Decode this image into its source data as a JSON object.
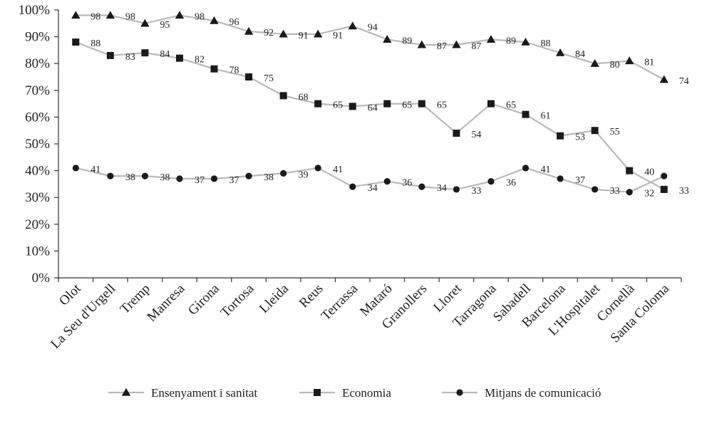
{
  "chart_data": {
    "type": "line",
    "title": "",
    "xlabel": "",
    "ylabel": "",
    "ylim": [
      0,
      100
    ],
    "y_ticks": [
      "0%",
      "10%",
      "20%",
      "30%",
      "40%",
      "50%",
      "60%",
      "70%",
      "80%",
      "90%",
      "100%"
    ],
    "categories": [
      "Olot",
      "La Seu d'Urgell",
      "Tremp",
      "Manresa",
      "Girona",
      "Tortosa",
      "Lleida",
      "Reus",
      "Terrassa",
      "Mataró",
      "Granollers",
      "Lloret",
      "Tarragona",
      "Sabadell",
      "Barcelona",
      "L'Hospitalet",
      "Cornellà",
      "Santa Coloma"
    ],
    "grid": false,
    "legend_position": "bottom",
    "series": [
      {
        "name": "Ensenyament i sanitat",
        "marker": "triangle",
        "values": [
          98,
          98,
          95,
          98,
          96,
          92,
          91,
          91,
          94,
          89,
          87,
          87,
          89,
          88,
          84,
          80,
          81,
          74
        ],
        "labels": [
          "98",
          "98",
          "95",
          "98",
          "96",
          "92",
          "91",
          "91",
          "94",
          "89",
          "87",
          "87",
          "89",
          "88",
          "84",
          "80",
          "81",
          "74"
        ]
      },
      {
        "name": "Economia",
        "marker": "square",
        "values": [
          88,
          83,
          84,
          82,
          78,
          75,
          68,
          65,
          64,
          65,
          65,
          54,
          65,
          61,
          53,
          55,
          40,
          33
        ],
        "labels": [
          "88",
          "83",
          "84",
          "82",
          "78",
          "75",
          "68",
          "65",
          "64",
          "65",
          "65",
          "54",
          "65",
          "61",
          "53",
          "55",
          "40",
          "33"
        ]
      },
      {
        "name": "Mitjans de comunicació",
        "marker": "circle",
        "values": [
          41,
          38,
          38,
          37,
          37,
          38,
          39,
          41,
          34,
          36,
          34,
          33,
          36,
          41,
          37,
          33,
          32,
          38
        ],
        "labels": [
          "41",
          "38",
          "38",
          "37",
          "37",
          "38",
          "39",
          "41",
          "34",
          "36",
          "34",
          "33",
          "36",
          "41",
          "37",
          "33",
          "32",
          ""
        ]
      }
    ],
    "colors": {
      "line": "#b9b9b9",
      "marker": "#1a1a1a",
      "axis": "#333333",
      "text": "#222222"
    }
  }
}
